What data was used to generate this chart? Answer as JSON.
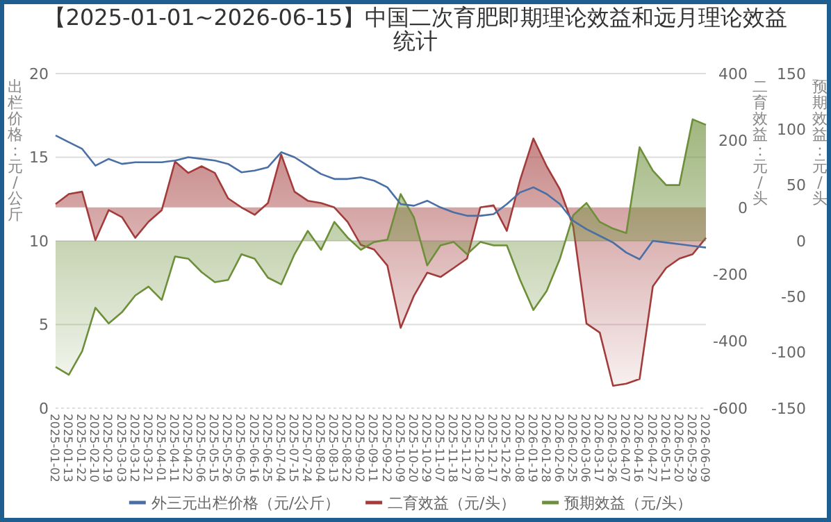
{
  "chart_data": {
    "type": "line",
    "title": "【2025-01-01~2026-06-15】中国二次育肥即期理论效益和远月理论效益统计",
    "ylabel": "出栏价格：元/公斤",
    "y2label": "二育效益：元/头",
    "y3label": "预期效益：元/头",
    "categories": [
      "2025-01-02",
      "2025-01-13",
      "2025-01-22",
      "2025-02-10",
      "2025-02-19",
      "2025-03-03",
      "2025-03-12",
      "2025-03-21",
      "2025-04-01",
      "2025-04-11",
      "2025-04-22",
      "2025-05-06",
      "2025-05-15",
      "2025-05-26",
      "2025-06-05",
      "2025-06-16",
      "2025-06-25",
      "2025-07-04",
      "2025-07-15",
      "2025-07-24",
      "2025-08-04",
      "2025-08-13",
      "2025-08-22",
      "2025-09-02",
      "2025-09-11",
      "2025-09-22",
      "2025-10-09",
      "2025-10-20",
      "2025-10-29",
      "2025-11-07",
      "2025-11-18",
      "2025-11-27",
      "2025-12-08",
      "2025-12-17",
      "2025-12-26",
      "2026-01-08",
      "2026-01-19",
      "2026-01-28",
      "2026-02-06",
      "2026-02-25",
      "2026-03-06",
      "2026-03-17",
      "2026-03-26",
      "2026-04-07",
      "2026-04-16",
      "2026-04-27",
      "2026-05-11",
      "2026-05-20",
      "2026-05-29",
      "2026-06-09"
    ],
    "series": [
      {
        "name": "外三元出栏价格（元/公斤）",
        "type": "line",
        "color": "#4a6fa5",
        "values": [
          16.3,
          15.9,
          15.5,
          14.5,
          14.9,
          14.6,
          14.7,
          14.7,
          14.7,
          14.8,
          15.0,
          14.9,
          14.8,
          14.6,
          14.1,
          14.2,
          14.4,
          15.3,
          15.0,
          14.5,
          14.0,
          13.7,
          13.7,
          13.8,
          13.6,
          13.2,
          12.2,
          12.1,
          12.4,
          12.0,
          11.7,
          11.5,
          11.5,
          11.6,
          12.2,
          12.9,
          13.2,
          12.8,
          12.2,
          11.2,
          10.7,
          10.3,
          9.9,
          9.3,
          8.9,
          10.0,
          9.9,
          9.8,
          9.7,
          9.6
        ]
      },
      {
        "name": "二育效益（元/头）",
        "type": "area",
        "axis": "y2",
        "color": "#a33b3b",
        "values": [
          10,
          40,
          47,
          -98,
          -8,
          -29,
          -91,
          -43,
          -8,
          137,
          103,
          123,
          103,
          27,
          0,
          -22,
          13,
          158,
          47,
          20,
          13,
          0,
          -43,
          -112,
          -126,
          -174,
          -360,
          -264,
          -195,
          -208,
          -181,
          -153,
          0,
          6,
          -70,
          82,
          206,
          123,
          54,
          -57,
          -347,
          -374,
          -533,
          -527,
          -513,
          -236,
          -181,
          -153,
          -140,
          -91
        ]
      },
      {
        "name": "预期效益（元/头）",
        "type": "area",
        "axis": "y3",
        "color": "#6d8f3a",
        "values": [
          -113,
          -120,
          -99,
          -60,
          -74,
          -64,
          -49,
          -41,
          -53,
          -14,
          -16,
          -28,
          -37,
          -35,
          -12,
          -16,
          -33,
          -39,
          -12,
          9,
          -8,
          17,
          3,
          -8,
          -1,
          1,
          42,
          21,
          -22,
          -4,
          -1,
          -12,
          -1,
          -4,
          -4,
          -35,
          -62,
          -45,
          -16,
          23,
          34,
          17,
          11,
          7,
          84,
          63,
          50,
          50,
          109,
          104
        ]
      }
    ],
    "ylim": [
      0,
      20
    ],
    "yticks": [
      0,
      5,
      10,
      15,
      20
    ],
    "y2lim": [
      -600,
      400
    ],
    "y2ticks": [
      -600,
      -400,
      -200,
      0,
      200,
      400
    ],
    "y3lim": [
      -150,
      150
    ],
    "y3ticks": [
      -150,
      -100,
      -50,
      0,
      50,
      100,
      150
    ],
    "grid": "y",
    "legend": "bottom"
  }
}
